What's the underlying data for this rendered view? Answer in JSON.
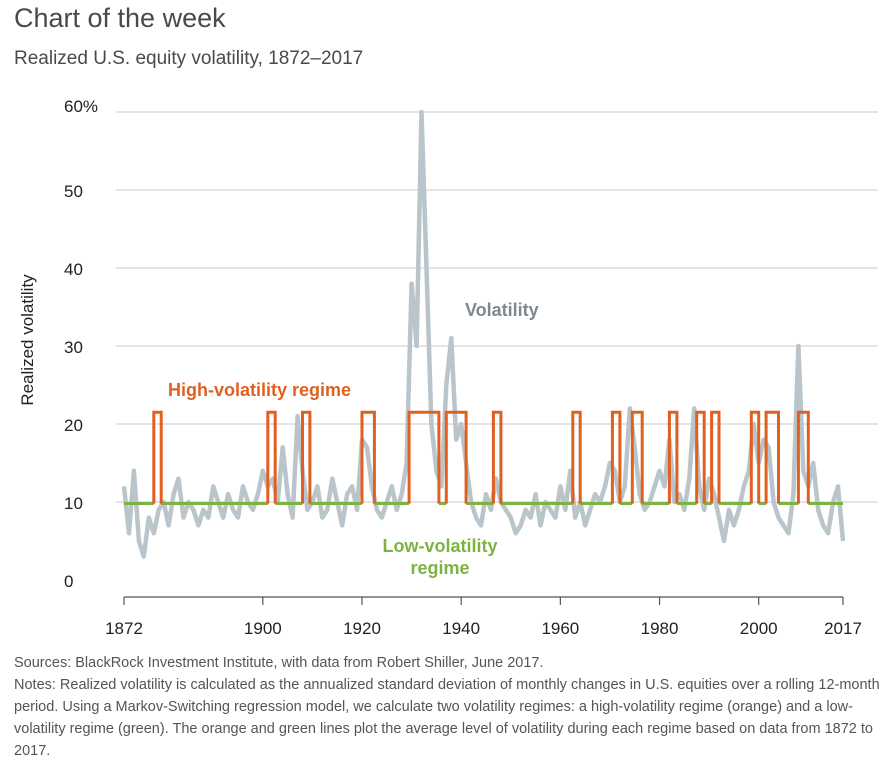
{
  "header": {
    "title": "Chart of the week",
    "subtitle": "Realized U.S. equity volatility, 1872–2017"
  },
  "chart_data": {
    "type": "line",
    "title": "Realized U.S. equity volatility, 1872–2017",
    "xlabel": "",
    "ylabel": "Realized volatility",
    "xlim": [
      1872,
      2017
    ],
    "ylim": [
      0,
      60
    ],
    "grid": true,
    "x_ticks": [
      1872,
      1900,
      1920,
      1940,
      1960,
      1980,
      2000,
      2017
    ],
    "y_ticks": [
      0,
      10,
      20,
      30,
      40,
      50,
      60
    ],
    "y_tick_labels": [
      "0",
      "10",
      "20",
      "30",
      "40",
      "50",
      "60%"
    ],
    "annotations": {
      "volatility": "Volatility",
      "high_regime": "High-volatility regime",
      "low_regime_line1": "Low-volatility",
      "low_regime_line2": "regime"
    },
    "colors": {
      "volatility": "#b9c4cb",
      "high": "#e06020",
      "low": "#7cb342",
      "grid": "#c8c8c8",
      "volatility_label": "#7d8890"
    },
    "series": [
      {
        "name": "Volatility",
        "x": [
          1872,
          1873,
          1874,
          1875,
          1876,
          1877,
          1878,
          1879,
          1880,
          1881,
          1882,
          1883,
          1884,
          1885,
          1886,
          1887,
          1888,
          1889,
          1890,
          1891,
          1892,
          1893,
          1894,
          1895,
          1896,
          1897,
          1898,
          1899,
          1900,
          1901,
          1902,
          1903,
          1904,
          1905,
          1906,
          1907,
          1908,
          1909,
          1910,
          1911,
          1912,
          1913,
          1914,
          1915,
          1916,
          1917,
          1918,
          1919,
          1920,
          1921,
          1922,
          1923,
          1924,
          1925,
          1926,
          1927,
          1928,
          1929,
          1930,
          1931,
          1932,
          1933,
          1934,
          1935,
          1936,
          1937,
          1938,
          1939,
          1940,
          1941,
          1942,
          1943,
          1944,
          1945,
          1946,
          1947,
          1948,
          1949,
          1950,
          1951,
          1952,
          1953,
          1954,
          1955,
          1956,
          1957,
          1958,
          1959,
          1960,
          1961,
          1962,
          1963,
          1964,
          1965,
          1966,
          1967,
          1968,
          1969,
          1970,
          1971,
          1972,
          1973,
          1974,
          1975,
          1976,
          1977,
          1978,
          1979,
          1980,
          1981,
          1982,
          1983,
          1984,
          1985,
          1986,
          1987,
          1988,
          1989,
          1990,
          1991,
          1992,
          1993,
          1994,
          1995,
          1996,
          1997,
          1998,
          1999,
          2000,
          2001,
          2002,
          2003,
          2004,
          2005,
          2006,
          2007,
          2008,
          2009,
          2010,
          2011,
          2012,
          2013,
          2014,
          2015,
          2016,
          2017
        ],
        "values": [
          12,
          6,
          14,
          5,
          3,
          8,
          6,
          9,
          10,
          7,
          11,
          13,
          8,
          10,
          9,
          7,
          9,
          8,
          12,
          10,
          8,
          11,
          9,
          8,
          12,
          10,
          9,
          11,
          14,
          12,
          13,
          10,
          17,
          11,
          8,
          21,
          14,
          9,
          10,
          12,
          8,
          9,
          13,
          10,
          7,
          11,
          12,
          9,
          18,
          17,
          12,
          9,
          8,
          10,
          12,
          9,
          11,
          15,
          38,
          30,
          60,
          40,
          20,
          14,
          12,
          25,
          31,
          18,
          20,
          15,
          10,
          8,
          7,
          11,
          9,
          13,
          10,
          9,
          8,
          6,
          7,
          9,
          8,
          11,
          7,
          10,
          9,
          8,
          12,
          9,
          14,
          8,
          10,
          7,
          9,
          11,
          10,
          12,
          15,
          14,
          10,
          12,
          22,
          17,
          11,
          9,
          10,
          12,
          14,
          12,
          18,
          10,
          11,
          9,
          13,
          22,
          12,
          9,
          13,
          11,
          8,
          5,
          9,
          7,
          9,
          12,
          14,
          20,
          15,
          18,
          17,
          10,
          8,
          7,
          6,
          11,
          30,
          14,
          12,
          15,
          9,
          7,
          6,
          10,
          12,
          5
        ]
      },
      {
        "name": "High-volatility regime",
        "level": 21.5
      },
      {
        "name": "Low-volatility regime",
        "level": 9.8
      }
    ],
    "high_regime_periods": [
      [
        1878,
        1879.5
      ],
      [
        1901,
        1902.5
      ],
      [
        1908,
        1909.5
      ],
      [
        1920,
        1922.5
      ],
      [
        1929.5,
        1935.5
      ],
      [
        1937,
        1941
      ],
      [
        1946.5,
        1948
      ],
      [
        1962.5,
        1964
      ],
      [
        1970.5,
        1972
      ],
      [
        1974.5,
        1976.5
      ],
      [
        1982,
        1983.5
      ],
      [
        1987.5,
        1989
      ],
      [
        1990.5,
        1992
      ],
      [
        1998.5,
        2000
      ],
      [
        2001.5,
        2004
      ],
      [
        2008,
        2010
      ]
    ]
  },
  "footnotes": {
    "sources": "Sources: BlackRock Investment Institute, with data from Robert Shiller, June 2017.",
    "notes": "Notes: Realized volatility is calculated as the annualized standard deviation of monthly changes in U.S. equities over a rolling 12-month period. Using a Markov-Switching regression model, we calculate two volatility regimes: a high-volatility regime (orange) and a low-volatility regime (green). The orange and green lines plot the average level of volatility during each regime based on data from 1872 to 2017."
  }
}
